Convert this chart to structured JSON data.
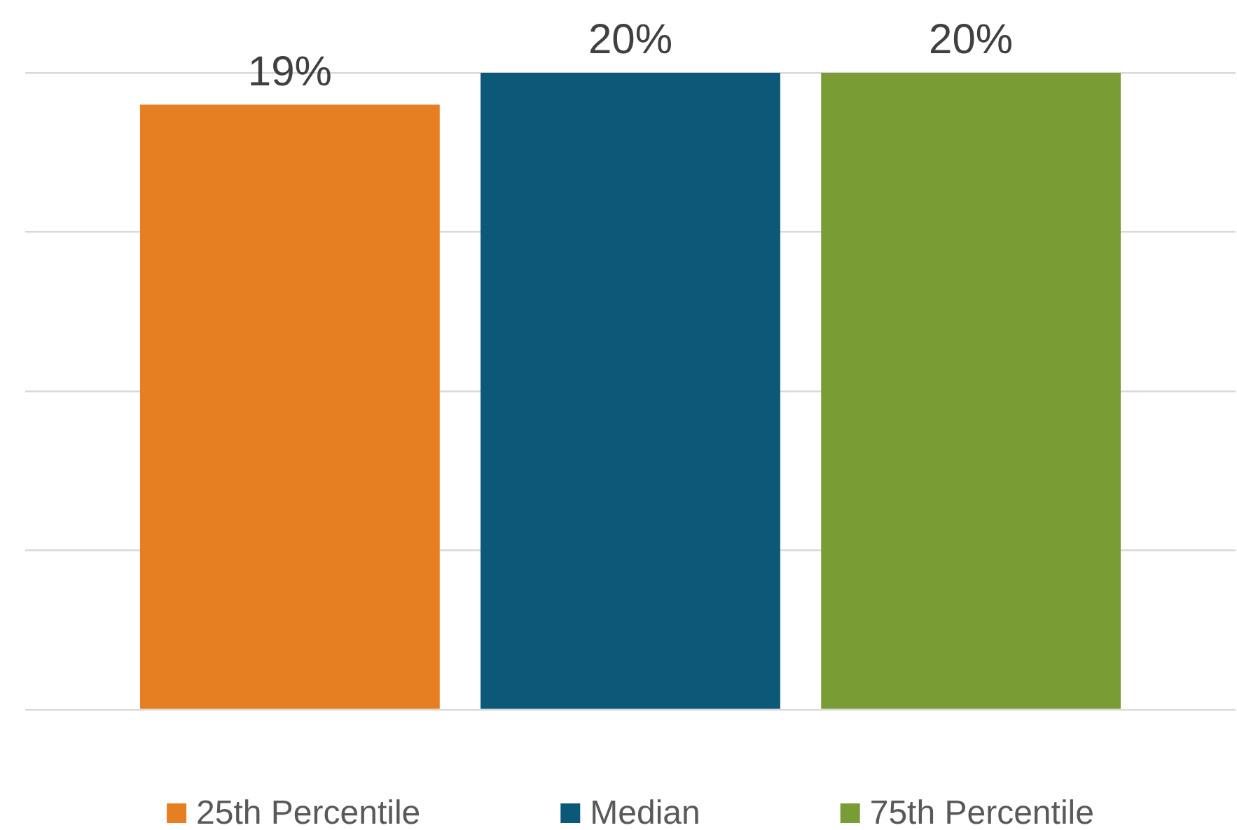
{
  "chart_data": {
    "type": "bar",
    "categories": [
      null
    ],
    "series": [
      {
        "name": "25th Percentile",
        "color": "#e67e22",
        "values": [
          19
        ],
        "value_labels": [
          "19%"
        ]
      },
      {
        "name": "Median",
        "color": "#0b5878",
        "values": [
          20
        ],
        "value_labels": [
          "20%"
        ]
      },
      {
        "name": "75th Percentile",
        "color": "#7a9c35",
        "values": [
          20
        ],
        "value_labels": [
          "20%"
        ]
      }
    ],
    "grid": "y",
    "tick_labels": false,
    "legend": "bottom"
  }
}
